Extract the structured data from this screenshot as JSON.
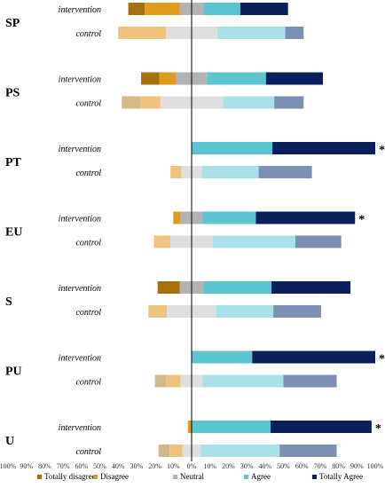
{
  "chart_data": {
    "type": "bar",
    "subtype": "diverging-stacked-horizontal",
    "title": "",
    "xlabel": "",
    "ylabel": "",
    "xlim": [
      -100,
      100
    ],
    "x_ticks": [
      "100%",
      "90%",
      "80%",
      "70%",
      "60%",
      "50%",
      "40%",
      "30%",
      "20%",
      "10%",
      "0%",
      "10%",
      "20%",
      "30%",
      "40%",
      "50%",
      "60%",
      "70%",
      "80%",
      "90%",
      "100%"
    ],
    "legend": {
      "position": "bottom",
      "entries": [
        "Totally disagree",
        "Disagree",
        "Neutral",
        "Agree",
        "Totally Agree"
      ]
    },
    "colors": {
      "intervention": [
        "#a6700d",
        "#e09a1c",
        "#b3b3b3",
        "#5bc4d1",
        "#0b1f5c"
      ],
      "control": [
        "#d3b888",
        "#efc27e",
        "#dedede",
        "#a8e2e8",
        "#7c8fb5"
      ],
      "legend": [
        "#a6700d",
        "#e09a1c",
        "#b3b3b3",
        "#5bc4d1",
        "#0b1f5c"
      ]
    },
    "groups": [
      {
        "name": "SP",
        "rows": [
          {
            "label": "intervention",
            "values": [
              9,
              19,
              13,
              20,
              26
            ],
            "significant": false
          },
          {
            "label": "control",
            "values": [
              0,
              26,
              28,
              37,
              10
            ],
            "significant": false
          }
        ]
      },
      {
        "name": "PS",
        "rows": [
          {
            "label": "intervention",
            "values": [
              10,
              9,
              17,
              32,
              31
            ],
            "significant": false
          },
          {
            "label": "control",
            "values": [
              10,
              11,
              34,
              28,
              16
            ],
            "significant": false
          }
        ]
      },
      {
        "name": "PT",
        "rows": [
          {
            "label": "intervention",
            "values": [
              0,
              0,
              0,
              44,
              56
            ],
            "significant": true
          },
          {
            "label": "control",
            "values": [
              0,
              6,
              11,
              31,
              29
            ],
            "significant": false
          }
        ]
      },
      {
        "name": "EU",
        "rows": [
          {
            "label": "intervention",
            "values": [
              0,
              4,
              12,
              29,
              54
            ],
            "significant": true
          },
          {
            "label": "control",
            "values": [
              0,
              9,
              23,
              45,
              25
            ],
            "significant": false
          }
        ]
      },
      {
        "name": "S",
        "rows": [
          {
            "label": "intervention",
            "values": [
              12,
              0,
              13,
              37,
              43
            ],
            "significant": false
          },
          {
            "label": "control",
            "values": [
              0,
              10,
              27,
              31,
              26
            ],
            "significant": false
          }
        ]
      },
      {
        "name": "PU",
        "rows": [
          {
            "label": "intervention",
            "values": [
              0,
              0,
              0,
              33,
              67
            ],
            "significant": true
          },
          {
            "label": "control",
            "values": [
              6,
              8,
              12,
              44,
              29
            ],
            "significant": false
          }
        ]
      },
      {
        "name": "U",
        "rows": [
          {
            "label": "intervention",
            "values": [
              0,
              2,
              0,
              43,
              55
            ],
            "significant": true
          },
          {
            "label": "control",
            "values": [
              6,
              7,
              10,
              43,
              31
            ],
            "significant": false
          }
        ]
      }
    ],
    "significance_marker": "*"
  }
}
